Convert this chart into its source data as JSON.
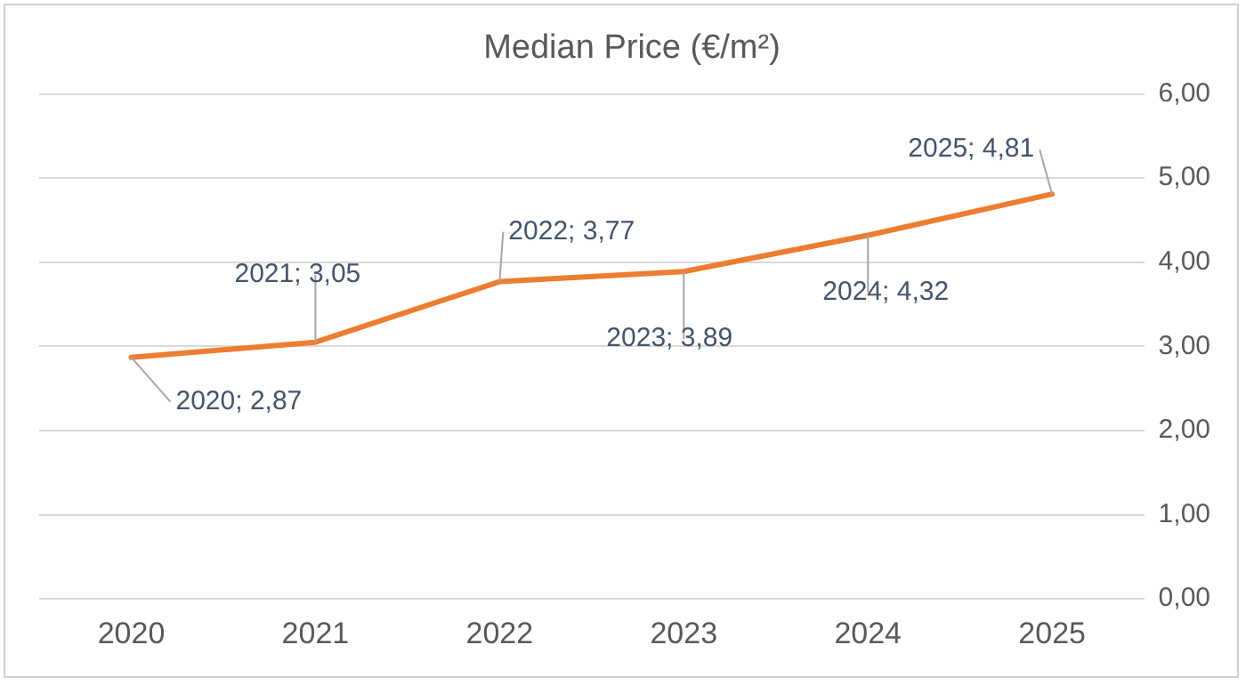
{
  "chart_data": {
    "type": "line",
    "title": "Median Price (€/m²)",
    "categories": [
      "2020",
      "2021",
      "2022",
      "2023",
      "2024",
      "2025"
    ],
    "series": [
      {
        "color": "#ed7d31",
        "values": [
          2.87,
          3.05,
          3.77,
          3.89,
          4.32,
          4.81
        ],
        "value_labels": [
          "2020; 2,87",
          "2021; 3,05",
          "2022; 3,77",
          "2023; 3,89",
          "2024; 4,32",
          "2025; 4,81"
        ]
      }
    ],
    "ylim": [
      0,
      6
    ],
    "yticks": [
      {
        "value": 0,
        "label": "0,00"
      },
      {
        "value": 1,
        "label": "1,00"
      },
      {
        "value": 2,
        "label": "2,00"
      },
      {
        "value": 3,
        "label": "3,00"
      },
      {
        "value": 4,
        "label": "4,00"
      },
      {
        "value": 5,
        "label": "5,00"
      },
      {
        "value": 6,
        "label": "6,00"
      }
    ],
    "grid": "y",
    "legend": false,
    "marker": "none",
    "line_style": "solid"
  }
}
